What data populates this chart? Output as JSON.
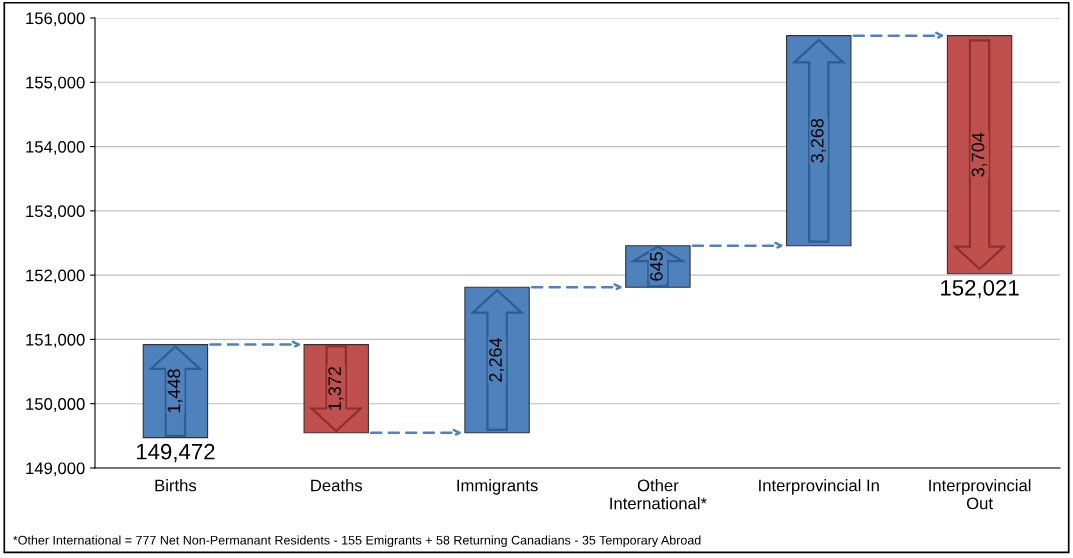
{
  "chart_data": {
    "type": "bar",
    "categories": [
      "Births",
      "Deaths",
      "Immigrants",
      "Other\nInternational*",
      "Interprovincial In",
      "Interprovincial\nOut"
    ],
    "base": [
      149472,
      150920,
      149548,
      151812,
      152457,
      155725
    ],
    "values": [
      1448,
      -1372,
      2264,
      645,
      3268,
      -3704
    ],
    "colors": [
      "#4f81bd",
      "#c0504d",
      "#4f81bd",
      "#4f81bd",
      "#4f81bd",
      "#c0504d"
    ],
    "value_labels": [
      "1,448",
      "1,372",
      "2,264",
      "645",
      "3,268",
      "3,704"
    ],
    "ylim": [
      149000,
      156000
    ],
    "yticks": [
      {
        "value": 149000,
        "label": "149,000"
      },
      {
        "value": 150000,
        "label": "150,000"
      },
      {
        "value": 151000,
        "label": "151,000"
      },
      {
        "value": 152000,
        "label": "152,000"
      },
      {
        "value": 153000,
        "label": "153,000"
      },
      {
        "value": 154000,
        "label": "154,000"
      },
      {
        "value": 155000,
        "label": "155,000"
      },
      {
        "value": 156000,
        "label": "156,000"
      }
    ],
    "grid": "y",
    "annotations": [
      {
        "text": "149,472",
        "x": "Births",
        "y": 149472
      },
      {
        "text": "152,021",
        "x": "Interprovincial\nOut",
        "y": 152021
      },
      "*Other International = 777 Net Non-Permanant Residents - 155 Emigrants + 58 Returning Canadians - 35 Temporary Abroad"
    ]
  }
}
